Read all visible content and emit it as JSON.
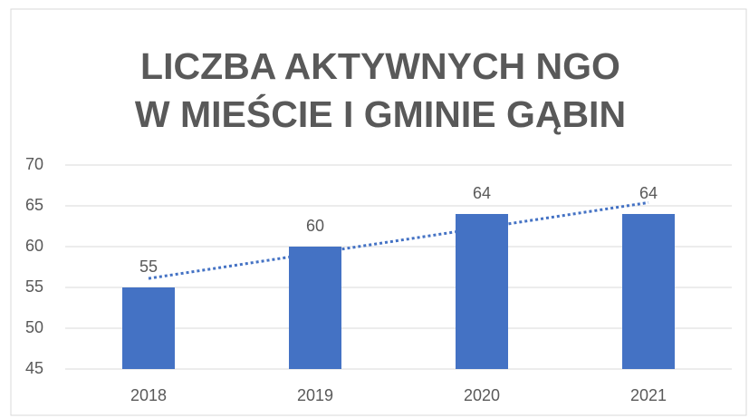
{
  "chart_data": {
    "type": "bar",
    "title": [
      "LICZBA AKTYWNYCH NGO",
      "W MIEŚCIE I GMINIE GĄBIN"
    ],
    "categories": [
      "2018",
      "2019",
      "2020",
      "2021"
    ],
    "values": [
      55,
      60,
      64,
      64
    ],
    "color": "#4472c4",
    "ylim": [
      45,
      70
    ],
    "yticks": [
      45,
      50,
      55,
      60,
      65,
      70
    ],
    "grid": true,
    "trendline": "linear"
  }
}
